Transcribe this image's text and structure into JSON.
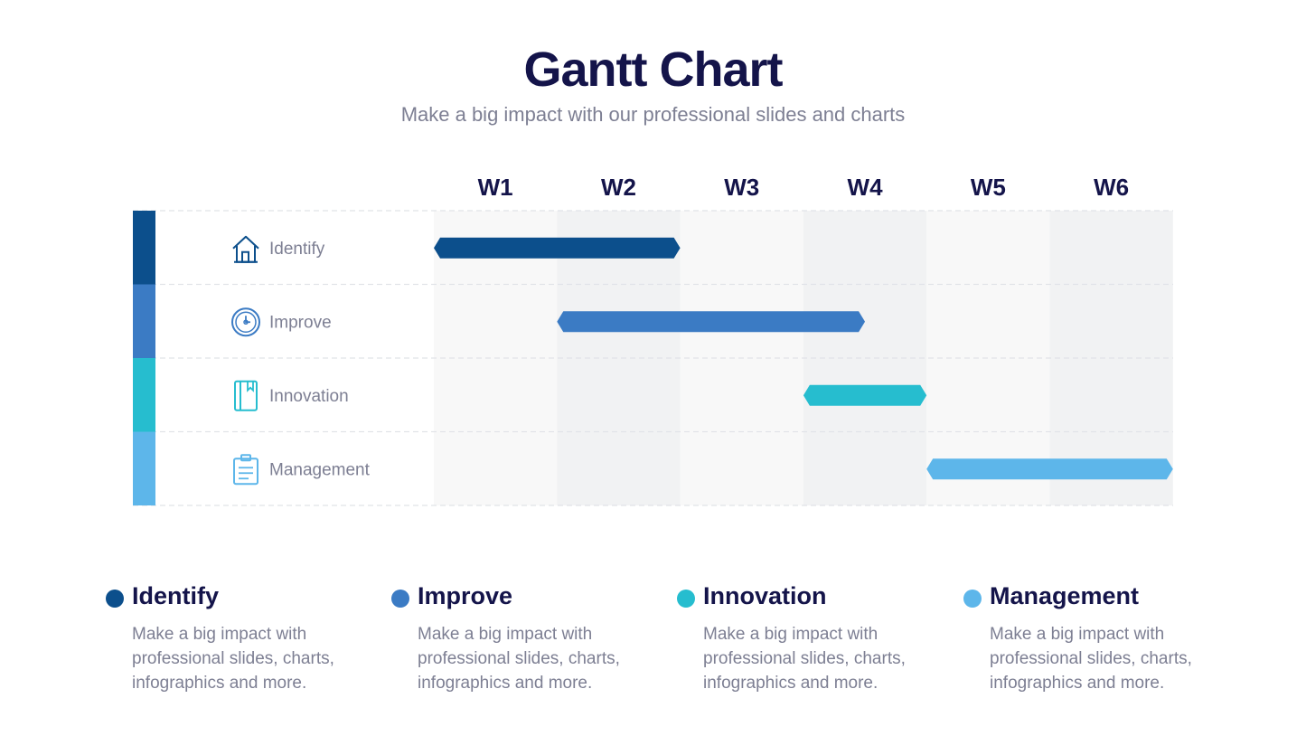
{
  "header": {
    "title": "Gantt Chart",
    "subtitle": "Make a big impact with our professional slides and charts"
  },
  "chart_data": {
    "type": "gantt",
    "weeks": [
      "W1",
      "W2",
      "W3",
      "W4",
      "W5",
      "W6"
    ],
    "tasks": [
      {
        "name": "Identify",
        "start": 1,
        "end": 2,
        "color": "#0c4f8c",
        "icon": "house-icon"
      },
      {
        "name": "Improve",
        "start": 2,
        "end": 3.5,
        "color": "#3b7bc4",
        "icon": "clock-icon"
      },
      {
        "name": "Innovation",
        "start": 4,
        "end": 4,
        "color": "#26bdcf",
        "icon": "book-icon"
      },
      {
        "name": "Management",
        "start": 5,
        "end": 6,
        "color": "#5db6ea",
        "icon": "clipboard-icon"
      }
    ],
    "grid": true
  },
  "legend": [
    {
      "title": "Identify",
      "description": "Make a big impact with professional slides, charts, infographics and more.",
      "color": "#0c4f8c"
    },
    {
      "title": "Improve",
      "description": "Make a big impact with professional slides, charts, infographics and more.",
      "color": "#3b7bc4"
    },
    {
      "title": "Innovation",
      "description": "Make a big impact with professional slides, charts, infographics and more.",
      "color": "#26bdcf"
    },
    {
      "title": "Management",
      "description": "Make a big impact with professional slides, charts, infographics and more.",
      "color": "#5db6ea"
    }
  ]
}
